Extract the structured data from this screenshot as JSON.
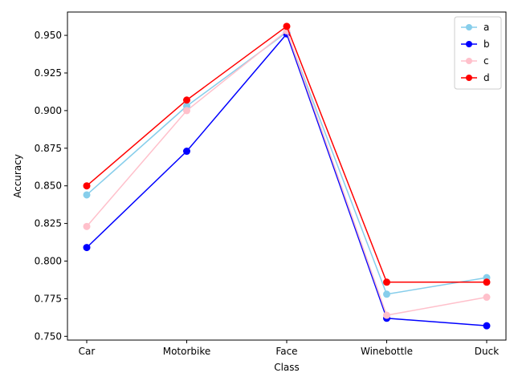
{
  "chart_data": {
    "type": "line",
    "categories": [
      "Car",
      "Motorbike",
      "Face",
      "Winebottle",
      "Duck"
    ],
    "xlabel": "Class",
    "ylabel": "Accuracy",
    "ylim": [
      0.7475,
      0.9655
    ],
    "yticks": [
      "0.750",
      "0.775",
      "0.800",
      "0.825",
      "0.850",
      "0.875",
      "0.900",
      "0.925",
      "0.950"
    ],
    "grid": false,
    "legend_position": "top-right",
    "series": [
      {
        "name": "a",
        "color": "#87ceeb",
        "values": [
          0.844,
          0.903,
          0.952,
          0.778,
          0.789
        ]
      },
      {
        "name": "b",
        "color": "#0000ff",
        "values": [
          0.809,
          0.873,
          0.951,
          0.762,
          0.757
        ]
      },
      {
        "name": "c",
        "color": "#ffc0cb",
        "values": [
          0.823,
          0.9,
          0.953,
          0.764,
          0.776
        ]
      },
      {
        "name": "d",
        "color": "#ff0000",
        "values": [
          0.85,
          0.907,
          0.956,
          0.786,
          0.786
        ]
      }
    ]
  }
}
